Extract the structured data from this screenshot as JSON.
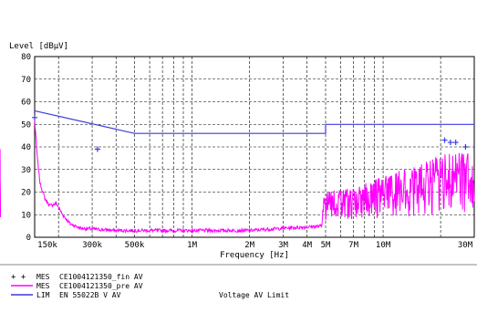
{
  "chart_data": {
    "type": "line",
    "ylabel": "Level [dBµV]",
    "xlabel": "Frequency [Hz]",
    "y_ticks": [
      0,
      10,
      20,
      30,
      40,
      50,
      60,
      70,
      80
    ],
    "ylim": [
      0,
      80
    ],
    "x_scale": "log",
    "xlim_hz": [
      150000,
      30000000
    ],
    "x_tick_labels": [
      {
        "label": "150k",
        "hz": 150000
      },
      {
        "label": "300k",
        "hz": 300000
      },
      {
        "label": "500k",
        "hz": 500000
      },
      {
        "label": "1M",
        "hz": 1000000
      },
      {
        "label": "2M",
        "hz": 2000000
      },
      {
        "label": "3M",
        "hz": 3000000
      },
      {
        "label": "4M",
        "hz": 4000000
      },
      {
        "label": "5M",
        "hz": 5000000
      },
      {
        "label": "7M",
        "hz": 7000000
      },
      {
        "label": "10M",
        "hz": 10000000
      },
      {
        "label": "30M",
        "hz": 30000000
      }
    ],
    "grid_x_hz": [
      150000,
      200000,
      300000,
      400000,
      500000,
      600000,
      700000,
      800000,
      900000,
      1000000,
      2000000,
      3000000,
      4000000,
      5000000,
      6000000,
      7000000,
      8000000,
      9000000,
      10000000,
      20000000,
      30000000
    ],
    "grid": true,
    "limit_line": {
      "x_hz": [
        150000,
        500000,
        5000000,
        5000000,
        30000000
      ],
      "y": [
        56,
        46,
        46,
        50,
        50
      ],
      "color": "#3a3ae0"
    },
    "final_points": {
      "x_hz": [
        150000,
        320000,
        21000000,
        22500000,
        24000000,
        27000000
      ],
      "y": [
        53,
        39,
        43,
        42,
        42,
        40
      ],
      "color": "#3a3ae0"
    },
    "prescan": {
      "color": "#ff00ff",
      "baseline": [
        [
          150000,
          52
        ],
        [
          155000,
          35
        ],
        [
          160000,
          24
        ],
        [
          170000,
          17
        ],
        [
          180000,
          14
        ],
        [
          195000,
          15
        ],
        [
          210000,
          10
        ],
        [
          230000,
          6
        ],
        [
          260000,
          4
        ],
        [
          400000,
          3
        ],
        [
          1000000,
          3
        ],
        [
          2000000,
          3
        ],
        [
          3000000,
          4
        ],
        [
          5000000,
          5
        ],
        [
          8000000,
          6
        ],
        [
          12000000,
          7
        ],
        [
          20000000,
          8
        ],
        [
          30000000,
          9
        ]
      ],
      "peaks": [
        {
          "x_hz": 290000,
          "y": 34
        },
        {
          "x_hz": 315000,
          "y": 39
        },
        {
          "x_hz": 440000,
          "y": 17
        },
        {
          "x_hz": 520000,
          "y": 21
        },
        {
          "x_hz": 560000,
          "y": 25
        },
        {
          "x_hz": 600000,
          "y": 24
        },
        {
          "x_hz": 690000,
          "y": 11
        },
        {
          "x_hz": 760000,
          "y": 16
        },
        {
          "x_hz": 850000,
          "y": 15
        },
        {
          "x_hz": 980000,
          "y": 12
        },
        {
          "x_hz": 1050000,
          "y": 17
        },
        {
          "x_hz": 1250000,
          "y": 13
        },
        {
          "x_hz": 1600000,
          "y": 22
        },
        {
          "x_hz": 1900000,
          "y": 12
        },
        {
          "x_hz": 2300000,
          "y": 15
        },
        {
          "x_hz": 2700000,
          "y": 18
        },
        {
          "x_hz": 3100000,
          "y": 17
        },
        {
          "x_hz": 3500000,
          "y": 16
        },
        {
          "x_hz": 4000000,
          "y": 18
        },
        {
          "x_hz": 4500000,
          "y": 20
        }
      ],
      "dense_region_hz": [
        4800000,
        30000000
      ],
      "dense_envelope": [
        [
          4800000,
          20
        ],
        [
          7000000,
          22
        ],
        [
          10000000,
          27
        ],
        [
          15000000,
          32
        ],
        [
          20000000,
          37
        ],
        [
          25000000,
          38
        ],
        [
          30000000,
          37
        ]
      ]
    }
  },
  "legend": [
    {
      "marker": "+ +",
      "label": "MES",
      "trace": "CE1004121350_fin AV",
      "description": "",
      "color": "#3a3ae0"
    },
    {
      "marker": "",
      "label": "MES",
      "trace": "CE1004121350_pre AV",
      "description": "",
      "color": "#ff00ff"
    },
    {
      "marker": "",
      "label": "LIM",
      "trace": "EN 55022B V AV",
      "description": "Voltage AV Limit",
      "color": "#3a3ae0"
    }
  ]
}
